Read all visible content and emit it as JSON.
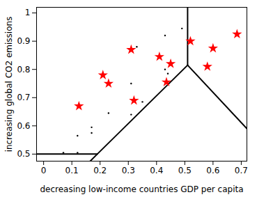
{
  "chart_data": {
    "type": "scatter",
    "x_label": "decreasing low-income countries GDP per capita",
    "y_label": "increasing global CO2 emissions",
    "xlim": [
      -0.025,
      0.72
    ],
    "ylim": [
      0.475,
      1.02
    ],
    "xticks": [
      0,
      0.1,
      0.2,
      0.3,
      0.4,
      0.5,
      0.6,
      0.7
    ],
    "yticks": [
      0.5,
      0.6,
      0.7,
      0.8,
      0.9,
      1
    ],
    "grid": false,
    "series": [
      {
        "color": "red",
        "marker": "star",
        "x": [
          0.125,
          0.21,
          0.23,
          0.31,
          0.32,
          0.41,
          0.45,
          0.435,
          0.52,
          0.58,
          0.6,
          0.685
        ],
        "y": [
          0.67,
          0.78,
          0.75,
          0.87,
          0.69,
          0.845,
          0.82,
          0.755,
          0.9,
          0.81,
          0.875,
          0.925
        ]
      },
      {
        "color": "black",
        "marker": "dot",
        "x": [
          0.07,
          0.12,
          0.12,
          0.17,
          0.17,
          0.23,
          0.31,
          0.31,
          0.35,
          0.43,
          0.44,
          0.43,
          0.49,
          0.33
        ],
        "y": [
          0.505,
          0.505,
          0.565,
          0.575,
          0.595,
          0.645,
          0.75,
          0.64,
          0.685,
          0.8,
          0.785,
          0.92,
          0.945,
          0.88
        ]
      }
    ],
    "boundaries": [
      {
        "color": "black",
        "line_style": "solid",
        "x": [
          -0.025,
          0.19
        ],
        "y": [
          0.5,
          0.5
        ]
      },
      {
        "color": "black",
        "line_style": "solid",
        "x": [
          0.19,
          0.51
        ],
        "y": [
          0.5,
          0.815
        ]
      },
      {
        "color": "black",
        "line_style": "solid",
        "x": [
          0.19,
          0.165
        ],
        "y": [
          0.5,
          0.475
        ]
      },
      {
        "color": "black",
        "line_style": "solid",
        "x": [
          0.51,
          0.51
        ],
        "y": [
          0.815,
          1.02
        ]
      },
      {
        "color": "black",
        "line_style": "solid",
        "x": [
          0.51,
          0.72
        ],
        "y": [
          0.815,
          0.59
        ]
      }
    ]
  }
}
